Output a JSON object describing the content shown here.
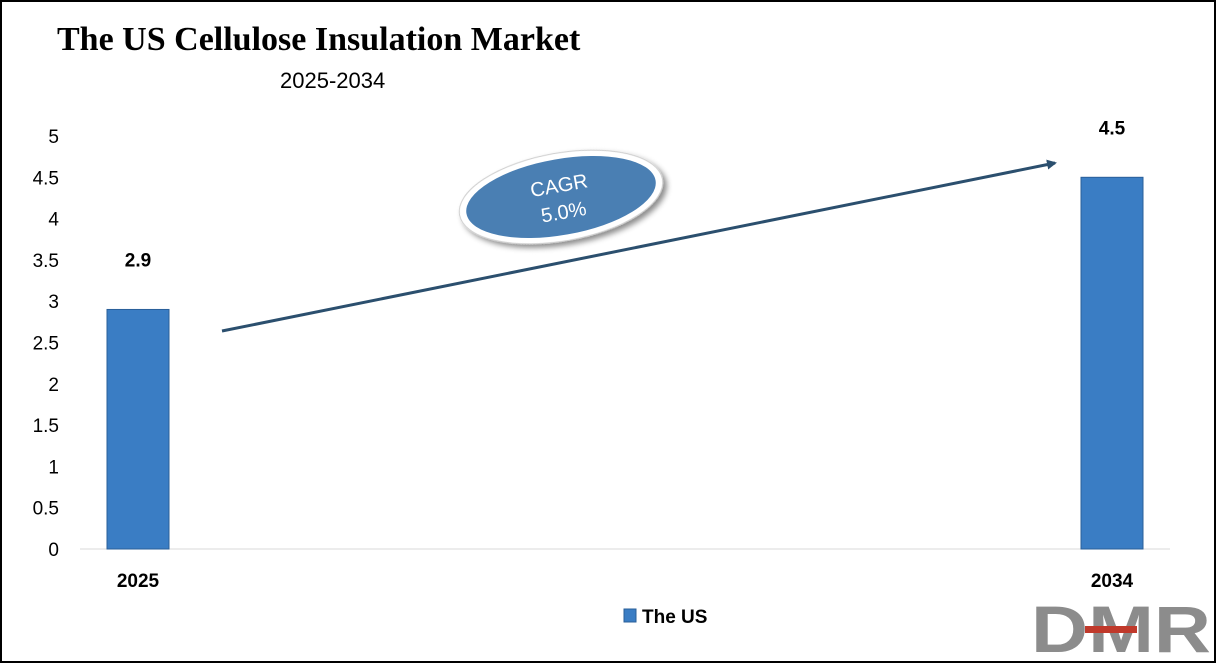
{
  "chart_data": {
    "type": "bar",
    "title": "The US Cellulose Insulation Market",
    "subtitle": "2025-2034",
    "categories": [
      "2025",
      "2034"
    ],
    "series": [
      {
        "name": "The US",
        "values": [
          2.9,
          4.5
        ],
        "data_labels": [
          "2.9",
          "4.5"
        ]
      }
    ],
    "ylim": [
      0,
      5
    ],
    "yticks": [
      "0",
      "0.5",
      "1",
      "1.5",
      "2",
      "2.5",
      "3",
      "3.5",
      "4",
      "4.5",
      "5"
    ],
    "xlabel": "",
    "ylabel": "",
    "grid": false,
    "legend_position": "bottom",
    "annotation": {
      "line1": "CAGR",
      "line2": "5.0%"
    }
  },
  "colors": {
    "bar": "#3A7DC4",
    "bar_dark": "#2A5F99",
    "arrow": "#2B4F6E",
    "cagr_fill": "#4A7FB3",
    "logo_gray": "#8C8C8C",
    "logo_red": "#C0392B"
  },
  "logo": {
    "text": "DMR"
  }
}
